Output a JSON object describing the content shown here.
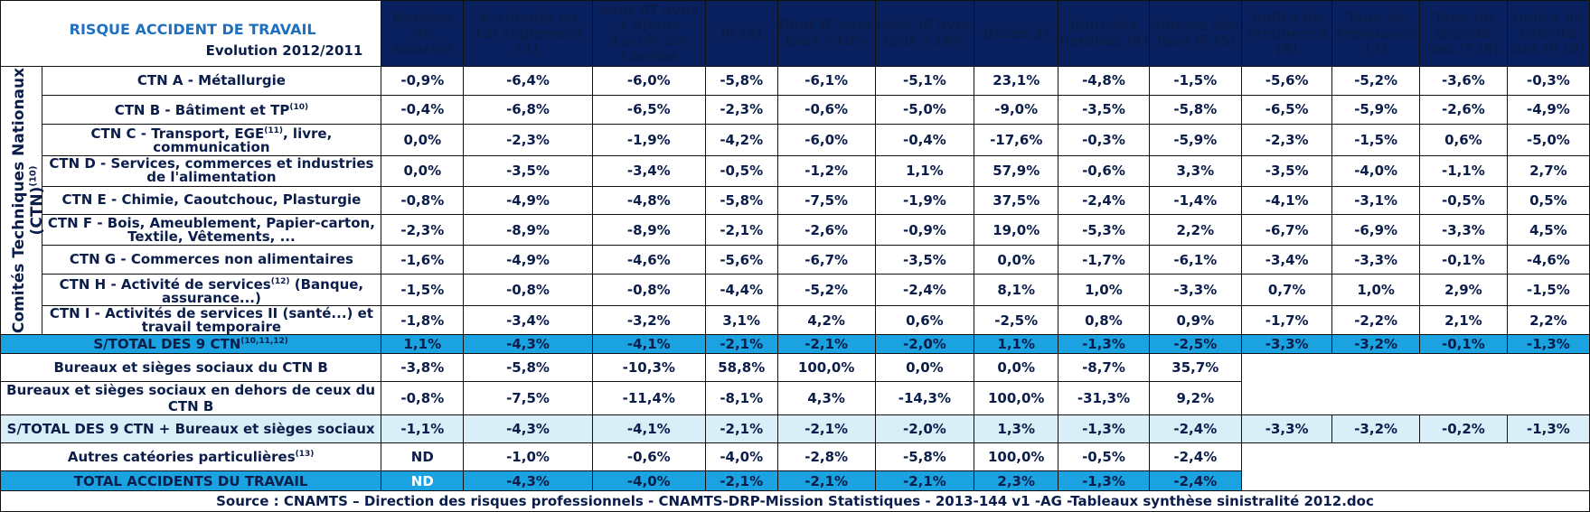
{
  "title": "RISQUE ACCIDENT DE TRAVAIL",
  "subtitle": "Evolution 2012/2011",
  "side_label_line1": "Comités Techniques Nationaux",
  "side_label_line2": "(CTN)",
  "side_label_sup": "(10)",
  "headers": [
    "Nombre de salariés",
    "Accidents en 1er règlement (1)",
    "dont AT avec + 4jours d'arrêt sur l'année",
    "IP (2)",
    "Dont IP avec taux <10%",
    "Dont IP avec taux >10%",
    "Décès 3)",
    "Journées Perdues (4)",
    "Somme des Taux IP (5)",
    "Indice de Fréquence (6)",
    "Taux de Fréquence (7)",
    "Taux de Gravité des IT (8)",
    "Indice de Gravité des IP (9)"
  ],
  "ctn_rows": [
    {
      "label": "CTN A - Métallurgie",
      "sup": "",
      "label_rest": "",
      "values": [
        "-0,9%",
        "-6,4%",
        "-6,0%",
        "-5,8%",
        "-6,1%",
        "-5,1%",
        "23,1%",
        "-4,8%",
        "-1,5%",
        "-5,6%",
        "-5,2%",
        "-3,6%",
        "-0,3%"
      ]
    },
    {
      "label": "CTN B - Bâtiment et TP",
      "sup": "(10)",
      "label_rest": "",
      "values": [
        "-0,4%",
        "-6,8%",
        "-6,5%",
        "-2,3%",
        "-0,6%",
        "-5,0%",
        "-9,0%",
        "-3,5%",
        "-5,8%",
        "-6,5%",
        "-5,9%",
        "-2,6%",
        "-4,9%"
      ]
    },
    {
      "label": "CTN C - Transport, EGE",
      "sup": "(11)",
      "label_rest": ", livre, communication",
      "values": [
        "0,0%",
        "-2,3%",
        "-1,9%",
        "-4,2%",
        "-6,0%",
        "-0,4%",
        "-17,6%",
        "-0,3%",
        "-5,9%",
        "-2,3%",
        "-1,5%",
        "0,6%",
        "-5,0%"
      ]
    },
    {
      "label": "CTN D - Services, commerces et industries de l'alimentation",
      "sup": "",
      "label_rest": "",
      "values": [
        "0,0%",
        "-3,5%",
        "-3,4%",
        "-0,5%",
        "-1,2%",
        "1,1%",
        "57,9%",
        "-0,6%",
        "3,3%",
        "-3,5%",
        "-4,0%",
        "-1,1%",
        "2,7%"
      ]
    },
    {
      "label": "CTN E - Chimie, Caoutchouc, Plasturgie",
      "sup": "",
      "label_rest": "",
      "values": [
        "-0,8%",
        "-4,9%",
        "-4,8%",
        "-5,8%",
        "-7,5%",
        "-1,9%",
        "37,5%",
        "-2,4%",
        "-1,4%",
        "-4,1%",
        "-3,1%",
        "-0,5%",
        "0,5%"
      ]
    },
    {
      "label": "CTN F - Bois, Ameublement, Papier-carton, Textile, Vêtements, ...",
      "sup": "",
      "label_rest": "",
      "values": [
        "-2,3%",
        "-8,9%",
        "-8,9%",
        "-2,1%",
        "-2,6%",
        "-0,9%",
        "19,0%",
        "-5,3%",
        "2,2%",
        "-6,7%",
        "-6,9%",
        "-3,3%",
        "4,5%"
      ]
    },
    {
      "label": "CTN G - Commerces non alimentaires",
      "sup": "",
      "label_rest": "",
      "values": [
        "-1,6%",
        "-4,9%",
        "-4,6%",
        "-5,6%",
        "-6,7%",
        "-3,5%",
        "0,0%",
        "-1,7%",
        "-6,1%",
        "-3,4%",
        "-3,3%",
        "-0,1%",
        "-4,6%"
      ]
    },
    {
      "label": "CTN H - Activité de services",
      "sup": "(12)",
      "label_rest": " (Banque, assurance...)",
      "values": [
        "-1,5%",
        "-0,8%",
        "-0,8%",
        "-4,4%",
        "-5,2%",
        "-2,4%",
        "8,1%",
        "1,0%",
        "-3,3%",
        "0,7%",
        "1,0%",
        "2,9%",
        "-1,5%"
      ]
    },
    {
      "label": "CTN I - Activités de services II (santé...) et travail temporaire",
      "sup": "",
      "label_rest": "",
      "values": [
        "-1,8%",
        "-3,4%",
        "-3,2%",
        "3,1%",
        "4,2%",
        "0,6%",
        "-2,5%",
        "0,8%",
        "0,9%",
        "-1,7%",
        "-2,2%",
        "2,1%",
        "2,2%"
      ]
    }
  ],
  "subtotal": {
    "label": "S/TOTAL DES 9 CTN",
    "sup": "(10,11,12)",
    "values": [
      "1,1%",
      "-4,3%",
      "-4,1%",
      "-2,1%",
      "-2,1%",
      "-2,0%",
      "1,1%",
      "-1,3%",
      "-2,5%",
      "-3,3%",
      "-3,2%",
      "-0,1%",
      "-1,3%"
    ]
  },
  "bureaux_b": {
    "label": "Bureaux et sièges sociaux du CTN B",
    "values": [
      "-3,8%",
      "-5,8%",
      "-10,3%",
      "58,8%",
      "100,0%",
      "0,0%",
      "0,0%",
      "-8,7%",
      "35,7%"
    ]
  },
  "bureaux_hors": {
    "label": "Bureaux et sièges sociaux en dehors de ceux du CTN B",
    "values": [
      "-0,8%",
      "-7,5%",
      "-11,4%",
      "-8,1%",
      "4,3%",
      "-14,3%",
      "100,0%",
      "-31,3%",
      "9,2%"
    ]
  },
  "subtotal_bureaux": {
    "label": "S/TOTAL DES 9 CTN + Bureaux et sièges sociaux",
    "values": [
      "-1,1%",
      "-4,3%",
      "-4,1%",
      "-2,1%",
      "-2,1%",
      "-2,0%",
      "1,3%",
      "-1,3%",
      "-2,4%",
      "-3,3%",
      "-3,2%",
      "-0,2%",
      "-1,3%"
    ]
  },
  "autres": {
    "label": "Autres catéories particulières",
    "sup": "(13)",
    "values": [
      "ND",
      "-1,0%",
      "-0,6%",
      "-4,0%",
      "-2,8%",
      "-5,8%",
      "100,0%",
      "-0,5%",
      "-2,4%"
    ]
  },
  "total": {
    "label": "TOTAL ACCIDENTS DU TRAVAIL",
    "values": [
      "ND",
      "-4,3%",
      "-4,0%",
      "-2,1%",
      "-2,1%",
      "-2,1%",
      "2,3%",
      "-1,3%",
      "-2,4%"
    ]
  },
  "source": "Source : CNAMTS – Direction des risques professionnels - CNAMTS-DRP-Mission Statistiques - 2013-144 v1 -AG -Tableaux synthèse sinistralité 2012.doc",
  "colors": {
    "header_bg": "#08215e",
    "subtotal_bg": "#1aa3e0",
    "light_bg": "#d9eef6",
    "blue_text": "#1e6fbf",
    "dark_text": "#0b1d4a"
  }
}
